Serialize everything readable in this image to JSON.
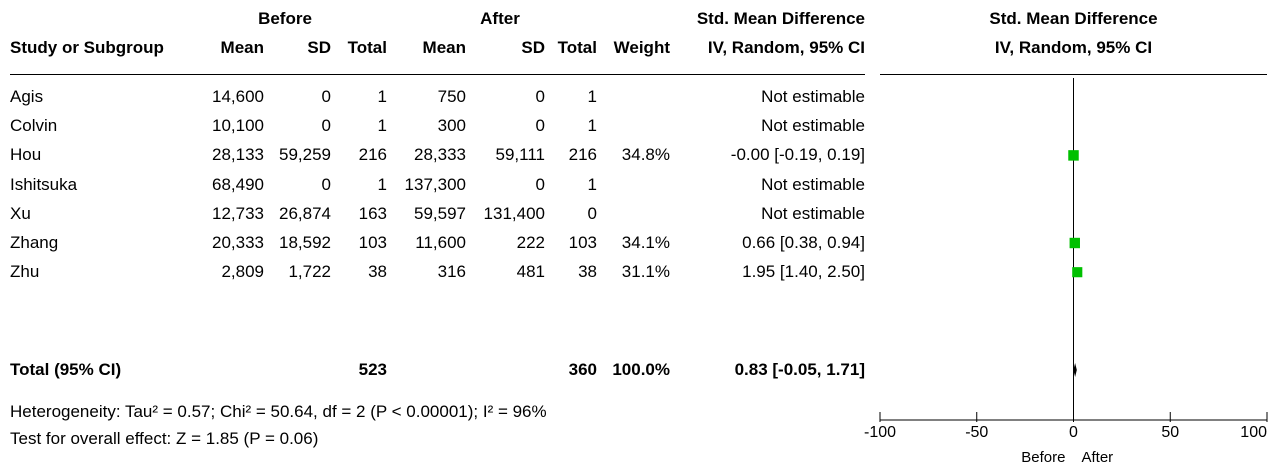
{
  "header": {
    "group_before": "Before",
    "group_after": "After",
    "effect_title": "Std. Mean Difference",
    "plot_title": "Std. Mean Difference",
    "columns": {
      "study": "Study or Subgroup",
      "mean_before": "Mean",
      "sd_before": "SD",
      "total_before": "Total",
      "mean_after": "Mean",
      "sd_after": "SD",
      "total_after": "Total",
      "weight": "Weight",
      "effect": "IV, Random, 95% CI",
      "plot": "IV, Random, 95% CI"
    }
  },
  "rows": [
    {
      "study": "Agis",
      "mean_before": "14,600",
      "sd_before": "0",
      "total_before": "1",
      "mean_after": "750",
      "sd_after": "0",
      "total_after": "1",
      "weight": "",
      "effect": "Not estimable"
    },
    {
      "study": "Colvin",
      "mean_before": "10,100",
      "sd_before": "0",
      "total_before": "1",
      "mean_after": "300",
      "sd_after": "0",
      "total_after": "1",
      "weight": "",
      "effect": "Not estimable"
    },
    {
      "study": "Hou",
      "mean_before": "28,133",
      "sd_before": "59,259",
      "total_before": "216",
      "mean_after": "28,333",
      "sd_after": "59,111",
      "total_after": "216",
      "weight": "34.8%",
      "effect": "-0.00 [-0.19, 0.19]"
    },
    {
      "study": "Ishitsuka",
      "mean_before": "68,490",
      "sd_before": "0",
      "total_before": "1",
      "mean_after": "137,300",
      "sd_after": "0",
      "total_after": "1",
      "weight": "",
      "effect": "Not estimable"
    },
    {
      "study": "Xu",
      "mean_before": "12,733",
      "sd_before": "26,874",
      "total_before": "163",
      "mean_after": "59,597",
      "sd_after": "131,400",
      "total_after": "0",
      "weight": "",
      "effect": "Not estimable"
    },
    {
      "study": "Zhang",
      "mean_before": "20,333",
      "sd_before": "18,592",
      "total_before": "103",
      "mean_after": "11,600",
      "sd_after": "222",
      "total_after": "103",
      "weight": "34.1%",
      "effect": "0.66 [0.38, 0.94]"
    },
    {
      "study": "Zhu",
      "mean_before": "2,809",
      "sd_before": "1,722",
      "total_before": "38",
      "mean_after": "316",
      "sd_after": "481",
      "total_after": "38",
      "weight": "31.1%",
      "effect": "1.95 [1.40, 2.50]"
    }
  ],
  "total": {
    "label": "Total (95% CI)",
    "total_before": "523",
    "total_after": "360",
    "weight": "100.0%",
    "effect": "0.83 [-0.05, 1.71]"
  },
  "footer": {
    "heterogeneity": "Heterogeneity: Tau² = 0.57; Chi² = 50.64, df = 2 (P < 0.00001); I² = 96%",
    "overall": "Test for overall effect: Z = 1.85 (P = 0.06)"
  },
  "chart_data": {
    "type": "forest",
    "xlim": [
      -100,
      100
    ],
    "ticks": [
      -100,
      -50,
      0,
      50,
      100
    ],
    "tick_labels": [
      "-100",
      "-50",
      "0",
      "50",
      "100"
    ],
    "left_label": "Before",
    "right_label": "After",
    "marker_color": "#00c000",
    "studies": [
      {
        "name": "Hou",
        "estimate": -0.0,
        "ci": [
          -0.19,
          0.19
        ],
        "weight": 34.8
      },
      {
        "name": "Zhang",
        "estimate": 0.66,
        "ci": [
          0.38,
          0.94
        ],
        "weight": 34.1
      },
      {
        "name": "Zhu",
        "estimate": 1.95,
        "ci": [
          1.4,
          2.5
        ],
        "weight": 31.1
      }
    ],
    "pooled": {
      "estimate": 0.83,
      "ci": [
        -0.05,
        1.71
      ]
    }
  }
}
